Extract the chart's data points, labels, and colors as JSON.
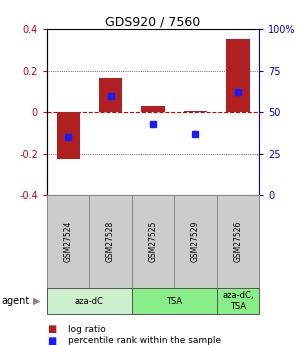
{
  "title": "GDS920 / 7560",
  "samples": [
    "GSM27524",
    "GSM27528",
    "GSM27525",
    "GSM27529",
    "GSM27526"
  ],
  "log_ratios": [
    -0.225,
    0.165,
    0.028,
    0.005,
    0.355
  ],
  "percentile_ranks": [
    35,
    60,
    43,
    37,
    62
  ],
  "ylim_left": [
    -0.4,
    0.4
  ],
  "ylim_right": [
    0,
    100
  ],
  "yticks_left": [
    -0.4,
    -0.2,
    0.0,
    0.2,
    0.4
  ],
  "yticks_right": [
    0,
    25,
    50,
    75,
    100
  ],
  "ytick_labels_left": [
    "-0.4",
    "-0.2",
    "0",
    "0.2",
    "0.4"
  ],
  "ytick_labels_right": [
    "0",
    "25",
    "50",
    "75",
    "100%"
  ],
  "bar_color": "#b02020",
  "dot_color": "#1a1aff",
  "zeroline_color": "#cc0000",
  "agent_groups": [
    {
      "start": 0,
      "end": 2,
      "label": "aza-dC",
      "color": "#ccf0cc"
    },
    {
      "start": 2,
      "end": 4,
      "label": "TSA",
      "color": "#88ee88"
    },
    {
      "start": 4,
      "end": 5,
      "label": "aza-dC,\nTSA",
      "color": "#88ee88"
    }
  ],
  "legend_items": [
    {
      "color": "#b02020",
      "label": "log ratio"
    },
    {
      "color": "#1a1aff",
      "label": "percentile rank within the sample"
    }
  ]
}
